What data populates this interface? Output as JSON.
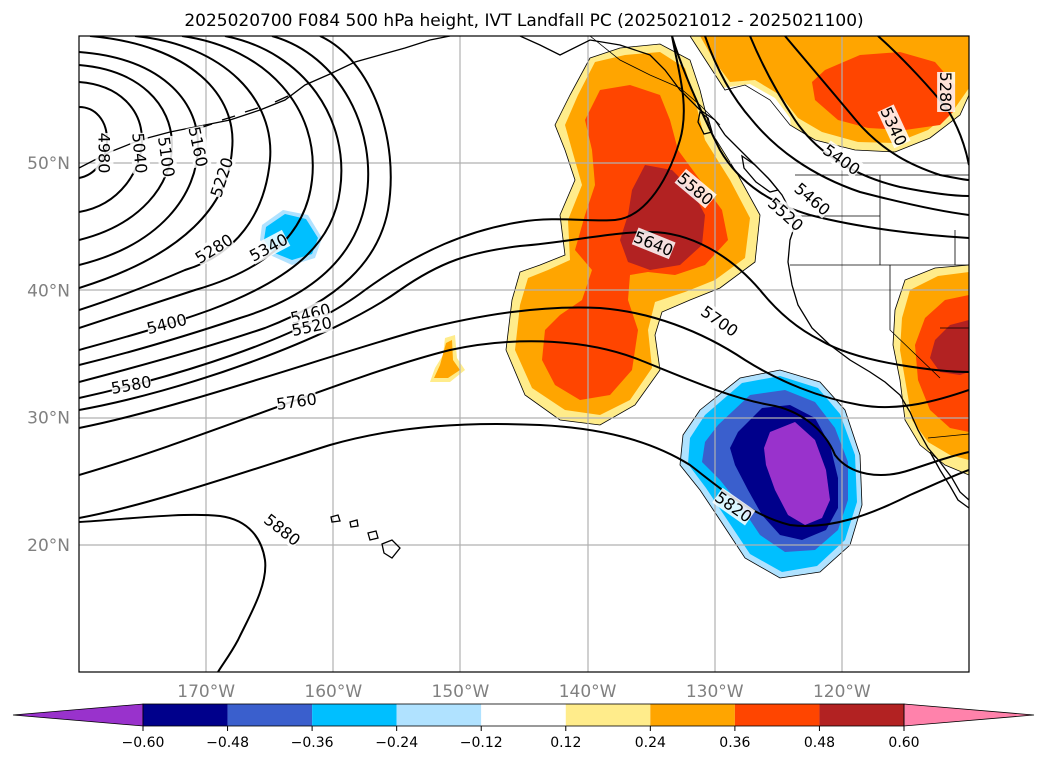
{
  "figure": {
    "title": "2025020700 F084 500 hPa height, IVT Landfall PC (2025021012 - 2025021100)"
  },
  "map": {
    "projection": "PlateCarree",
    "lon_range": [
      -180,
      -110
    ],
    "lat_range": [
      10,
      60
    ],
    "lon_ticks": [
      {
        "lon": -170,
        "label": "170°W"
      },
      {
        "lon": -160,
        "label": "160°W"
      },
      {
        "lon": -150,
        "label": "150°W"
      },
      {
        "lon": -140,
        "label": "140°W"
      },
      {
        "lon": -130,
        "label": "130°W"
      },
      {
        "lon": -120,
        "label": "120°W"
      }
    ],
    "lat_ticks": [
      {
        "lat": 50,
        "label": "50°N"
      },
      {
        "lat": 40,
        "label": "40°N"
      },
      {
        "lat": 30,
        "label": "30°N"
      },
      {
        "lat": 20,
        "label": "20°N"
      }
    ],
    "gridlines": true
  },
  "height_contours": {
    "units": "dam",
    "levels": [
      4980,
      5040,
      5100,
      5160,
      5220,
      5280,
      5340,
      5400,
      5460,
      5520,
      5580,
      5640,
      5700,
      5760,
      5820,
      5880
    ],
    "labels": [
      {
        "text": "4980",
        "lon": -178.0,
        "lat": 50.8,
        "rot": 90
      },
      {
        "text": "5040",
        "lon": -175.2,
        "lat": 50.8,
        "rot": 85
      },
      {
        "text": "5100",
        "lon": -173.1,
        "lat": 50.5,
        "rot": 82
      },
      {
        "text": "5160",
        "lon": -170.6,
        "lat": 51.3,
        "rot": 78
      },
      {
        "text": "5220",
        "lon": -168.8,
        "lat": 48.9,
        "rot": -72
      },
      {
        "text": "5280",
        "lon": -169.4,
        "lat": 43.3,
        "rot": -32
      },
      {
        "text": "5340",
        "lon": -165.1,
        "lat": 43.4,
        "rot": -28
      },
      {
        "text": "5400",
        "lon": -173.1,
        "lat": 37.4,
        "rot": -14
      },
      {
        "text": "5460",
        "lon": -161.8,
        "lat": 38.2,
        "rot": -14
      },
      {
        "text": "5520",
        "lon": -161.7,
        "lat": 37.2,
        "rot": -12
      },
      {
        "text": "5580",
        "lon": -175.9,
        "lat": 32.6,
        "rot": -10
      },
      {
        "text": "5760",
        "lon": -162.9,
        "lat": 31.3,
        "rot": -8
      },
      {
        "text": "5880",
        "lon": -164.0,
        "lat": 21.2,
        "rot": 38
      },
      {
        "text": "5580",
        "lon": -131.5,
        "lat": 48.0,
        "rot": 40
      },
      {
        "text": "5640",
        "lon": -134.8,
        "lat": 43.7,
        "rot": 22
      },
      {
        "text": "5700",
        "lon": -129.6,
        "lat": 37.6,
        "rot": 35
      },
      {
        "text": "5820",
        "lon": -128.5,
        "lat": 23.0,
        "rot": 35
      },
      {
        "text": "5520",
        "lon": -124.4,
        "lat": 46.0,
        "rot": 42
      },
      {
        "text": "5460",
        "lon": -122.3,
        "lat": 47.2,
        "rot": 40
      },
      {
        "text": "5400",
        "lon": -120.0,
        "lat": 50.3,
        "rot": 35
      },
      {
        "text": "5340",
        "lon": -115.9,
        "lat": 52.9,
        "rot": 65
      },
      {
        "text": "5280",
        "lon": -111.8,
        "lat": 55.6,
        "rot": 90
      }
    ]
  },
  "colorbar": {
    "field": "IVT Landfall PC",
    "extend": "both",
    "ticks": [
      "−0.60",
      "−0.48",
      "−0.36",
      "−0.24",
      "−0.12",
      "0.12",
      "0.24",
      "0.36",
      "0.48",
      "0.60"
    ],
    "colors": [
      "#9932cc",
      "#00008b",
      "#3a5fcd",
      "#00bfff",
      "#b0e2ff",
      "#ffffff",
      "#ffec8b",
      "#ffa500",
      "#ff4500",
      "#b22222",
      "#ff82ab"
    ]
  }
}
